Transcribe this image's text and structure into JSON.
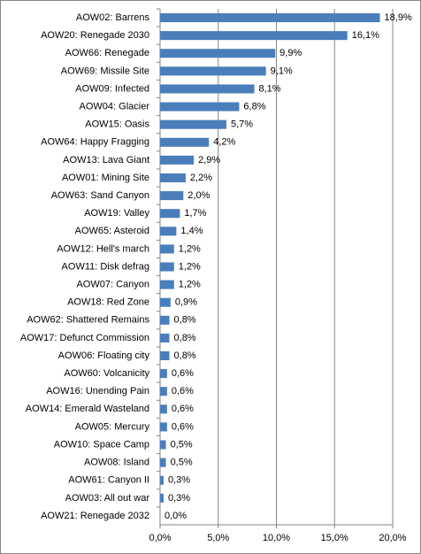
{
  "chart_data": {
    "type": "bar",
    "orientation": "horizontal",
    "categories": [
      "AOW02: Barrens",
      "AOW20: Renegade 2030",
      "AOW66: Renegade",
      "AOW69: Missile Site",
      "AOW09: Infected",
      "AOW04: Glacier",
      "AOW15: Oasis",
      "AOW64: Happy Fragging",
      "AOW13: Lava Giant",
      "AOW01: Mining Site",
      "AOW63: Sand Canyon",
      "AOW19: Valley",
      "AOW65: Asteroid",
      "AOW12: Hell's march",
      "AOW11: Disk defrag",
      "AOW07: Canyon",
      "AOW18: Red Zone",
      "AOW62: Shattered Remains",
      "AOW17: Defunct Commission",
      "AOW06: Floating city",
      "AOW60: Volcanicity",
      "AOW16: Unending Pain",
      "AOW14: Emerald Wasteland",
      "AOW05: Mercury",
      "AOW10: Space Camp",
      "AOW08: Island",
      "AOW61: Canyon II",
      "AOW03: All out war",
      "AOW21: Renegade 2032"
    ],
    "values": [
      18.9,
      16.1,
      9.9,
      9.1,
      8.1,
      6.8,
      5.7,
      4.2,
      2.9,
      2.2,
      2.0,
      1.7,
      1.4,
      1.2,
      1.2,
      1.2,
      0.9,
      0.8,
      0.8,
      0.8,
      0.6,
      0.6,
      0.6,
      0.6,
      0.5,
      0.5,
      0.3,
      0.3,
      0.0
    ],
    "value_labels": [
      "18,9%",
      "16,1%",
      "9,9%",
      "9,1%",
      "8,1%",
      "6,8%",
      "5,7%",
      "4,2%",
      "2,9%",
      "2,2%",
      "2,0%",
      "1,7%",
      "1,4%",
      "1,2%",
      "1,2%",
      "1,2%",
      "0,9%",
      "0,8%",
      "0,8%",
      "0,8%",
      "0,6%",
      "0,6%",
      "0,6%",
      "0,6%",
      "0,5%",
      "0,5%",
      "0,3%",
      "0,3%",
      "0,0%"
    ],
    "color": "#4a7ebb",
    "xlim": [
      0,
      20
    ],
    "xticks": [
      {
        "value": 0,
        "label": "0,0%"
      },
      {
        "value": 5,
        "label": "5,0%"
      },
      {
        "value": 10,
        "label": "10,0%"
      },
      {
        "value": 15,
        "label": "15,0%"
      },
      {
        "value": 20,
        "label": "20,0%"
      }
    ],
    "grid": true
  }
}
